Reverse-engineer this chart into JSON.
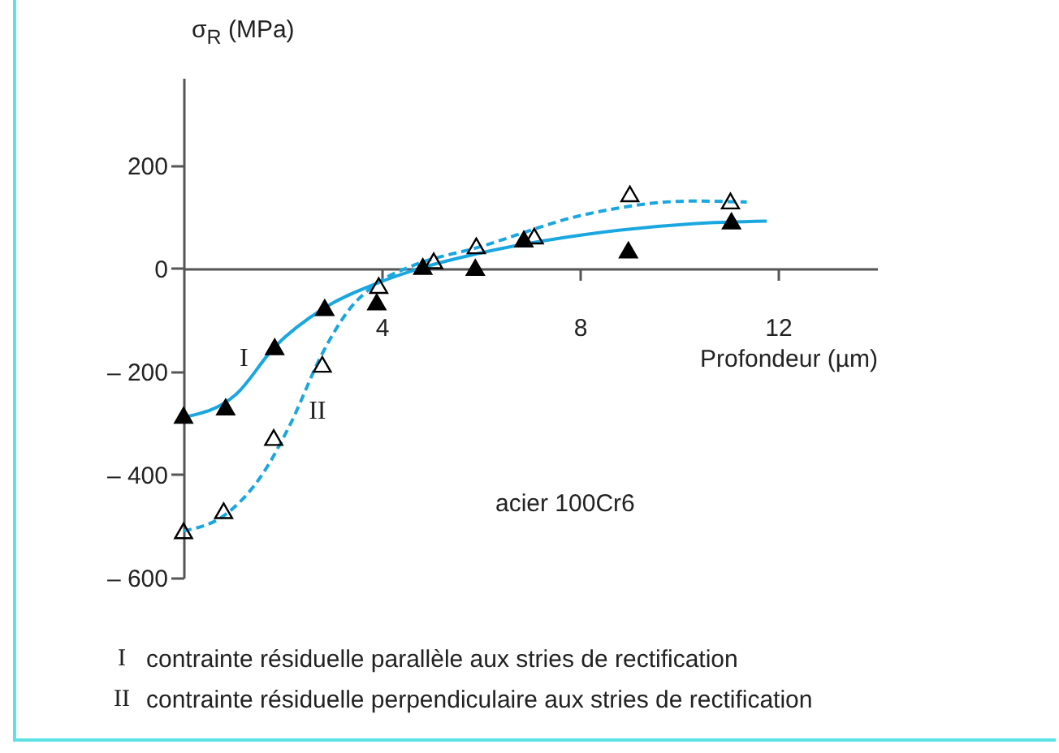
{
  "chart_data": {
    "type": "line",
    "ylabel": "σ$_{R}$ (MPa)",
    "xlabel": "Profondeur (µm)",
    "xlim": [
      0,
      14
    ],
    "ylim": [
      -600,
      370
    ],
    "xticks": [
      4,
      8,
      12
    ],
    "yticks": [
      {
        "value": -600,
        "label": "– 600"
      },
      {
        "value": -400,
        "label": "– 400"
      },
      {
        "value": -200,
        "label": "– 200"
      },
      0,
      200
    ],
    "grid": false,
    "series": [
      {
        "name": "I",
        "color": "#1aa7e0",
        "line_style": "solid",
        "x": [
          0,
          1.06,
          1.84,
          2.85,
          3.92,
          4.83,
          5.94,
          8.11,
          10.28,
          11.77
        ],
        "values": [
          -289,
          -244,
          -152,
          -76,
          -28,
          2,
          29,
          66,
          87,
          92
        ]
      },
      {
        "name": "II",
        "color": "#1aa7e0",
        "line_style": "dashed",
        "x": [
          0,
          0.85,
          1.6,
          2.15,
          2.8,
          3.34,
          3.92,
          4.64,
          5.94,
          8.11,
          10.28,
          11.37
        ],
        "values": [
          -509,
          -477,
          -398,
          -303,
          -165,
          -80,
          -28,
          6,
          41,
          105,
          131,
          129
        ]
      },
      {
        "type": "scatter",
        "color": "#000000",
        "marker": "triangle",
        "x": [
          0,
          0.85,
          1.84,
          2.85,
          3.9,
          4.83,
          5.89,
          6.87,
          8.98,
          11.06
        ],
        "values": [
          -285,
          -269,
          -152,
          -76,
          -65,
          4,
          2,
          57,
          36,
          92
        ]
      },
      {
        "type": "scatter",
        "color": "#000000",
        "marker": "triangle",
        "x": [
          0,
          0.81,
          1.82,
          2.8,
          3.94,
          5.05,
          5.91,
          7.08,
          9.01,
          11.04
        ],
        "values": [
          -509,
          -470,
          -328,
          -186,
          -33,
          15,
          44,
          63,
          145,
          131
        ]
      }
    ],
    "annotations": [
      "acier 100Cr6",
      "contrainte résiduelle parallèle aux stries de rectification",
      "contrainte résiduelle perpendiculaire aux stries de rectification"
    ]
  }
}
